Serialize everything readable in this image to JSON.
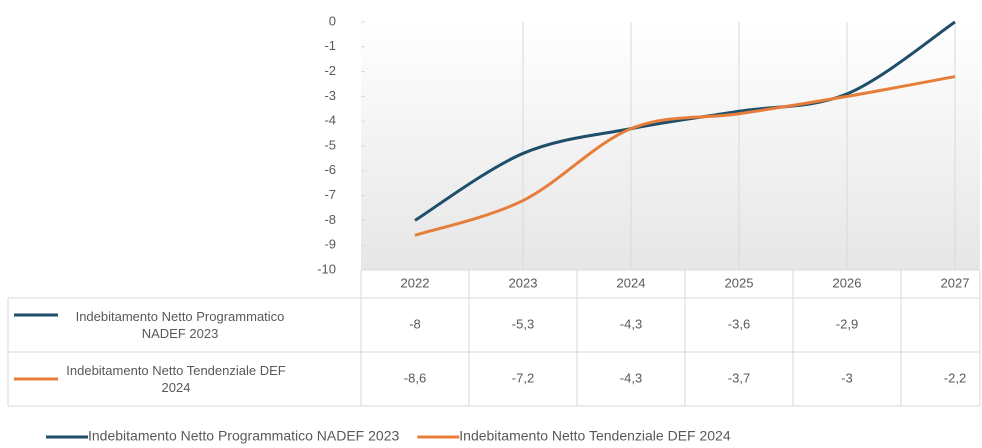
{
  "chart_data": {
    "type": "line",
    "categories": [
      "2022",
      "2023",
      "2024",
      "2025",
      "2026",
      "2027"
    ],
    "series": [
      {
        "name": "Indebitamento Netto Programmatico NADEF 2023",
        "color": "#1f4e6b",
        "values": [
          -8,
          -5.3,
          -4.3,
          -3.6,
          -2.9,
          0
        ],
        "value_labels": [
          "-8",
          "-5,3",
          "-4,3",
          "-3,6",
          "-2,9",
          null
        ]
      },
      {
        "name": "Indebitamento Netto Tendenziale DEF 2024",
        "color": "#e67e3a",
        "values": [
          -8.6,
          -7.2,
          -4.3,
          -3.7,
          -3,
          -2.2
        ],
        "value_labels": [
          "-8,6",
          "-7,2",
          "-4,3",
          "-3,7",
          "-3",
          "-2,2"
        ]
      }
    ],
    "ylim": [
      -10,
      0
    ],
    "yticks": [
      0,
      -1,
      -2,
      -3,
      -4,
      -5,
      -6,
      -7,
      -8,
      -9,
      -10
    ],
    "legend": "bottom"
  }
}
